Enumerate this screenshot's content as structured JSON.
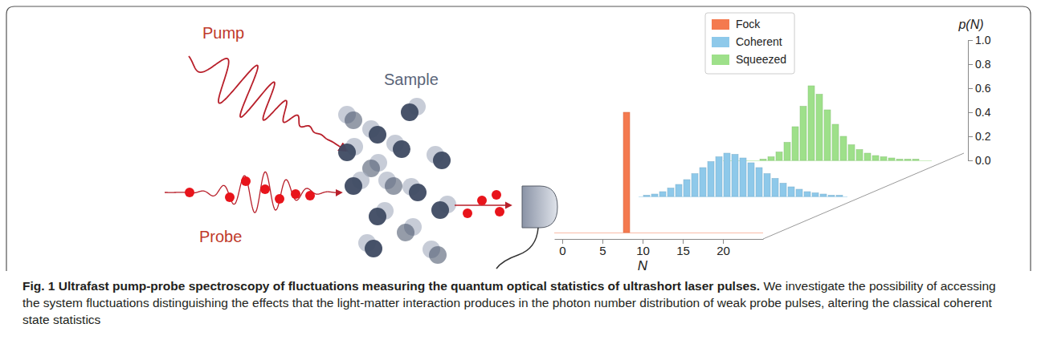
{
  "diagram": {
    "pump_label": "Pump",
    "probe_label": "Probe",
    "sample_label": "Sample"
  },
  "chart_data": {
    "type": "bar",
    "x_label": "N",
    "y_label": "p(N)",
    "x": [
      0,
      1,
      2,
      3,
      4,
      5,
      6,
      7,
      8,
      9,
      10,
      11,
      12,
      13,
      14,
      15,
      16,
      17,
      18,
      19,
      20,
      21,
      22,
      23,
      24
    ],
    "series": [
      {
        "name": "Fock",
        "color": "#f47a4f",
        "values": [
          null,
          null,
          null,
          null,
          null,
          null,
          null,
          null,
          1.0,
          null,
          null,
          null,
          null,
          null,
          null,
          null,
          null,
          null,
          null,
          null,
          null,
          null,
          null,
          null,
          null
        ]
      },
      {
        "name": "Coherent",
        "color": "#8ec9ea",
        "values": [
          0.01,
          0.02,
          0.04,
          0.07,
          0.1,
          0.14,
          0.19,
          0.24,
          0.29,
          0.33,
          0.36,
          0.35,
          0.32,
          0.28,
          0.24,
          0.19,
          0.15,
          0.11,
          0.08,
          0.06,
          0.04,
          0.03,
          0.02,
          0.01,
          0.01
        ]
      },
      {
        "name": "Squeezed",
        "color": "#9ee08a",
        "values": [
          0,
          0,
          0,
          0,
          0.01,
          0.03,
          0.07,
          0.15,
          0.28,
          0.45,
          0.62,
          0.55,
          0.42,
          0.3,
          0.2,
          0.13,
          0.09,
          0.06,
          0.04,
          0.03,
          0.02,
          0.01,
          0.01,
          0.01,
          0
        ]
      }
    ],
    "xlim": [
      -1,
      25
    ],
    "xticks": [
      0,
      5,
      10,
      15,
      20
    ],
    "ylim": [
      0,
      1
    ],
    "yticks": [
      {
        "value": 0,
        "label": "0.0"
      },
      0.2,
      0.4,
      0.6,
      0.8,
      {
        "value": 1,
        "label": "1.0"
      }
    ],
    "legend": "top"
  },
  "caption": {
    "title": "Fig. 1 Ultrafast pump-probe spectroscopy of fluctuations measuring the quantum optical statistics of ultrashort laser pulses.",
    "text": "We investigate the possibility of accessing the system fluctuations distinguishing the effects that the light-matter interaction produces in the photon number distribution of weak probe pulses, altering the classical coherent state statistics"
  }
}
